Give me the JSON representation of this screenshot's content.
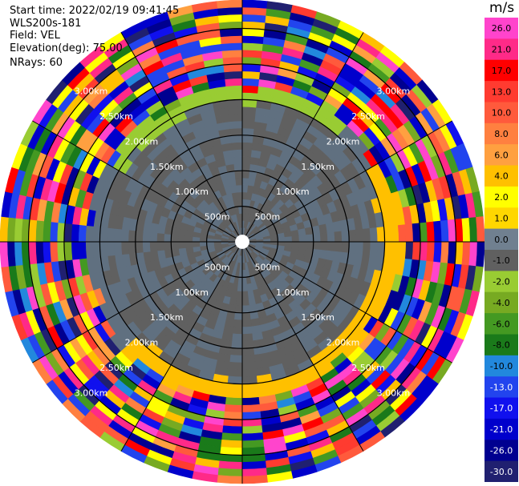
{
  "info": {
    "start_time_label": "Start time:",
    "start_time": "2022/02/19 09:41:45",
    "station": "WLS200s-181",
    "field_label": "Field:",
    "field": "VEL",
    "elevation_label": "Elevation(deg):",
    "elevation": "75.00",
    "nrays_label": "NRays:",
    "nrays": "60"
  },
  "chart_data": {
    "type": "heatmap",
    "projection": "polar PPI",
    "nrays": 60,
    "range_rings_km": [
      0.5,
      1.0,
      1.5,
      2.0,
      2.5,
      3.0
    ],
    "ring_labels": [
      "500m",
      "1.00km",
      "1.50km",
      "2.00km",
      "2.50km",
      "3.00km"
    ],
    "max_range_km": 3.4,
    "gate_km": 0.1,
    "colorbar": {
      "unit": "m/s",
      "ticks": [
        "26.0",
        "21.0",
        "17.0",
        "13.0",
        "10.0",
        "8.0",
        "6.0",
        "4.0",
        "2.0",
        "1.0",
        "0.0",
        "-1.0",
        "-2.0",
        "-4.0",
        "-6.0",
        "-8.0",
        "-10.0",
        "-13.0",
        "-17.0",
        "-21.0",
        "-26.0",
        "-30.0"
      ],
      "bin_colors": [
        "#ff44cc",
        "#ff2a88",
        "#ff0000",
        "#ff3b30",
        "#ff5a3c",
        "#ff8040",
        "#ffa040",
        "#ffc000",
        "#ffff00",
        "#ffd700",
        "#708090",
        "#606060",
        "#99cc33",
        "#77aa22",
        "#449922",
        "#1a7a1a",
        "#2288dd",
        "#2244ee",
        "#1010ee",
        "#0000cc",
        "#000090",
        "#202070"
      ]
    },
    "clear_air": {
      "inner_km": 2.0,
      "gray_shades": [
        "#607080",
        "#606060"
      ],
      "south_east_ring_color": "#ffc000",
      "north_ring_color": "#99cc33"
    }
  }
}
